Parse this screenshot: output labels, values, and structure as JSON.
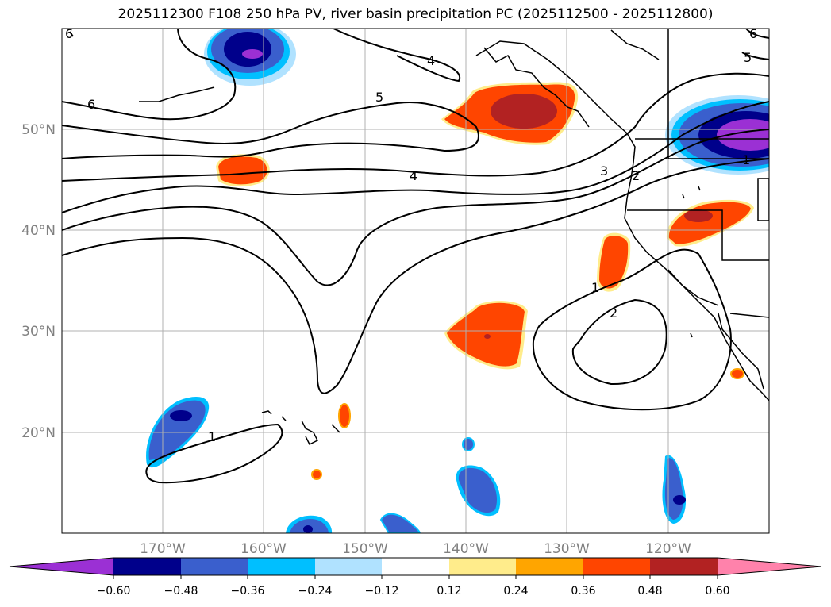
{
  "title": "2025112300 F108 250 hPa PV, river basin precipitation PC (2025112500 - 2025112800)",
  "lon_labels": [
    "170°W",
    "160°W",
    "150°W",
    "140°W",
    "130°W",
    "120°W"
  ],
  "lat_labels": [
    "50°N",
    "40°N",
    "30°N",
    "20°N"
  ],
  "contour_labels": {
    "c6a": "6",
    "c6b": "6",
    "c6c": "6",
    "c5a": "5",
    "c5b": "5",
    "c4a": "4",
    "c4b": "4",
    "c3": "3",
    "c2a": "2",
    "c2b": "2",
    "c1a": "1",
    "c1b": "1",
    "c1c": "1"
  },
  "colorbar": {
    "ticks": [
      "−0.60",
      "−0.48",
      "−0.36",
      "−0.24",
      "−0.12",
      "0.12",
      "0.24",
      "0.36",
      "0.48",
      "0.60"
    ],
    "colors": [
      "#9b30d4",
      "#00008b",
      "#3a5fcd",
      "#00bfff",
      "#b0e2ff",
      "#ffffff",
      "#ffec8b",
      "#ffa500",
      "#ff4500",
      "#b22222",
      "#ff82ab"
    ]
  }
}
